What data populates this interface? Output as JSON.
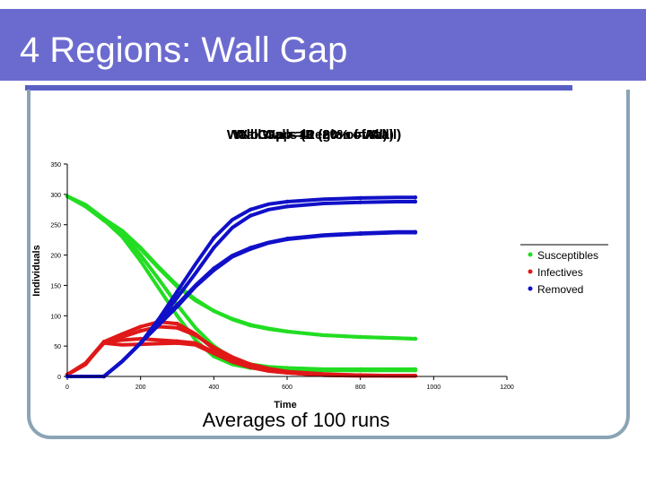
{
  "slide": {
    "title": "4 Regions: Wall Gap",
    "caption": "Averages of 100 runs"
  },
  "chart_data": {
    "type": "line",
    "title": "Wall Gap = 1 (2% of Wall)",
    "overlay_titles": [
      "Wall Gap = 40 (80% of Wall)",
      "Wall Gap = 10 (20% of Wall)",
      "Wall Gap = 1 (2% of Wall)",
      "No Walls (Region = All)"
    ],
    "xlabel": "Time",
    "ylabel": "Individuals",
    "xlim": [
      0,
      1200
    ],
    "ylim": [
      0,
      350
    ],
    "xticks": [
      "0",
      "200",
      "400",
      "600",
      "800",
      "1000",
      "1200"
    ],
    "yticks": [
      "0",
      "50",
      "100",
      "150",
      "200",
      "250",
      "300",
      "350"
    ],
    "legend_position": "right",
    "colors": {
      "Susceptibles": "#22dd22",
      "Infectives": "#e01818",
      "Removed": "#1010c8"
    },
    "series": [
      {
        "name": "Susceptibles",
        "group": "No Walls",
        "x": [
          0,
          50,
          100,
          150,
          200,
          250,
          300,
          350,
          400,
          450,
          500,
          550,
          600,
          700,
          800,
          900,
          950
        ],
        "y": [
          297,
          280,
          258,
          230,
          190,
          145,
          100,
          60,
          33,
          20,
          14,
          12,
          11,
          10,
          10,
          10,
          10
        ]
      },
      {
        "name": "Susceptibles",
        "group": "Wall Gap = 40",
        "x": [
          0,
          50,
          100,
          150,
          200,
          250,
          300,
          350,
          400,
          450,
          500,
          550,
          600,
          700,
          800,
          900,
          950
        ],
        "y": [
          297,
          280,
          257,
          235,
          200,
          160,
          118,
          80,
          50,
          30,
          20,
          16,
          14,
          12,
          12,
          12,
          12
        ]
      },
      {
        "name": "Susceptibles",
        "group": "Wall Gap = 10",
        "x": [
          0,
          50,
          100,
          150,
          200,
          250,
          300,
          350,
          400,
          450,
          500,
          550,
          600,
          700,
          800,
          900,
          950
        ],
        "y": [
          297,
          280,
          258,
          238,
          210,
          178,
          148,
          125,
          108,
          94,
          84,
          78,
          74,
          68,
          65,
          63,
          62
        ]
      },
      {
        "name": "Susceptibles",
        "group": "Wall Gap = 1",
        "x": [
          0,
          50,
          100,
          150,
          200,
          250,
          300,
          350,
          400,
          450,
          500,
          550,
          600,
          700,
          800,
          900,
          950
        ],
        "y": [
          297,
          283,
          260,
          240,
          212,
          180,
          150,
          127,
          108,
          95,
          85,
          79,
          74,
          68,
          65,
          63,
          62
        ]
      },
      {
        "name": "Infectives",
        "group": "No Walls",
        "x": [
          0,
          50,
          100,
          150,
          200,
          250,
          300,
          350,
          400,
          450,
          500,
          550,
          600,
          700,
          800,
          900,
          950
        ],
        "y": [
          3,
          20,
          57,
          70,
          82,
          90,
          87,
          70,
          45,
          28,
          17,
          11,
          7,
          3,
          2,
          1,
          1
        ]
      },
      {
        "name": "Infectives",
        "group": "Wall Gap = 40",
        "x": [
          0,
          50,
          100,
          150,
          200,
          250,
          300,
          350,
          400,
          450,
          500,
          550,
          600,
          700,
          800,
          900,
          950
        ],
        "y": [
          3,
          20,
          57,
          65,
          75,
          82,
          80,
          68,
          48,
          32,
          20,
          13,
          8,
          4,
          2,
          1,
          1
        ]
      },
      {
        "name": "Infectives",
        "group": "Wall Gap = 10",
        "x": [
          0,
          50,
          100,
          150,
          200,
          250,
          300,
          350,
          400,
          450,
          500,
          550,
          600,
          700,
          800,
          900,
          950
        ],
        "y": [
          3,
          22,
          57,
          60,
          62,
          60,
          58,
          55,
          40,
          25,
          15,
          9,
          6,
          2,
          1,
          1,
          1
        ]
      },
      {
        "name": "Infectives",
        "group": "Wall Gap = 1",
        "x": [
          0,
          50,
          100,
          150,
          200,
          250,
          300,
          350,
          400,
          450,
          500,
          550,
          600,
          700,
          800,
          900,
          950
        ],
        "y": [
          3,
          21,
          55,
          52,
          53,
          54,
          55,
          52,
          38,
          24,
          15,
          9,
          6,
          2,
          1,
          1,
          1
        ]
      },
      {
        "name": "Removed",
        "group": "No Walls",
        "x": [
          0,
          50,
          100,
          150,
          200,
          250,
          300,
          350,
          400,
          450,
          500,
          550,
          600,
          700,
          800,
          900,
          950
        ],
        "y": [
          0,
          0,
          0,
          25,
          55,
          95,
          140,
          185,
          228,
          258,
          275,
          284,
          288,
          292,
          294,
          295,
          295
        ]
      },
      {
        "name": "Removed",
        "group": "Wall Gap = 40",
        "x": [
          0,
          50,
          100,
          150,
          200,
          250,
          300,
          350,
          400,
          450,
          500,
          550,
          600,
          700,
          800,
          900,
          950
        ],
        "y": [
          0,
          0,
          0,
          25,
          55,
          90,
          130,
          170,
          212,
          245,
          265,
          275,
          280,
          285,
          287,
          288,
          288
        ]
      },
      {
        "name": "Removed",
        "group": "Wall Gap = 10",
        "x": [
          0,
          50,
          100,
          150,
          200,
          250,
          300,
          350,
          400,
          450,
          500,
          550,
          600,
          700,
          800,
          900,
          950
        ],
        "y": [
          0,
          0,
          0,
          25,
          55,
          85,
          115,
          148,
          175,
          197,
          210,
          220,
          226,
          232,
          235,
          237,
          237
        ]
      },
      {
        "name": "Removed",
        "group": "Wall Gap = 1",
        "x": [
          0,
          50,
          100,
          150,
          200,
          250,
          300,
          350,
          400,
          450,
          500,
          550,
          600,
          700,
          800,
          900,
          950
        ],
        "y": [
          0,
          0,
          0,
          25,
          55,
          88,
          118,
          150,
          178,
          199,
          212,
          221,
          227,
          233,
          236,
          238,
          238
        ]
      }
    ]
  }
}
